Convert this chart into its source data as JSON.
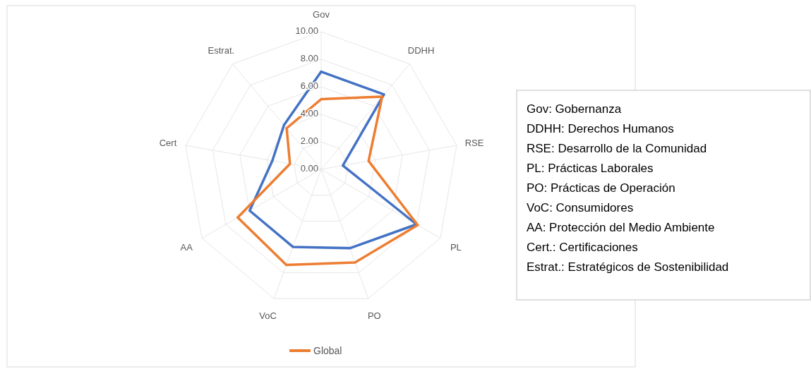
{
  "chart_data": {
    "type": "radar",
    "categories": [
      "Gov",
      "DDHH",
      "RSE",
      "PL",
      "PO",
      "VoC",
      "AA",
      "Cert",
      "Estrat."
    ],
    "series": [
      {
        "color": "#4472c4",
        "values": [
          7.1,
          7.1,
          1.6,
          8.0,
          6.1,
          6.0,
          6.0,
          3.6,
          4.2
        ]
      },
      {
        "name": "Global",
        "color": "#ed7d31",
        "values": [
          5.1,
          6.9,
          3.5,
          8.1,
          7.2,
          7.4,
          7.0,
          2.3,
          3.9
        ]
      }
    ],
    "ylim": [
      0,
      10
    ],
    "yticks": [
      {
        "value": 0,
        "label": "0.00"
      },
      {
        "value": 2,
        "label": "2.00"
      },
      {
        "value": 4,
        "label": "4.00"
      },
      {
        "value": 6,
        "label": "6.00"
      },
      {
        "value": 8,
        "label": "8.00"
      },
      {
        "value": 10,
        "label": "10.00"
      }
    ],
    "grid": true,
    "legend": "bottom",
    "annotations": [
      "Gov: Gobernanza",
      "DDHH: Derechos Humanos",
      "RSE: Desarrollo de la Comunidad",
      "PL: Prácticas Laborales",
      "PO: Prácticas de Operación",
      "VoC: Consumidores",
      "AA: Protección del Medio Ambiente",
      "Cert.: Certificaciones",
      "Estrat.: Estratégicos de Sostenibilidad"
    ]
  }
}
